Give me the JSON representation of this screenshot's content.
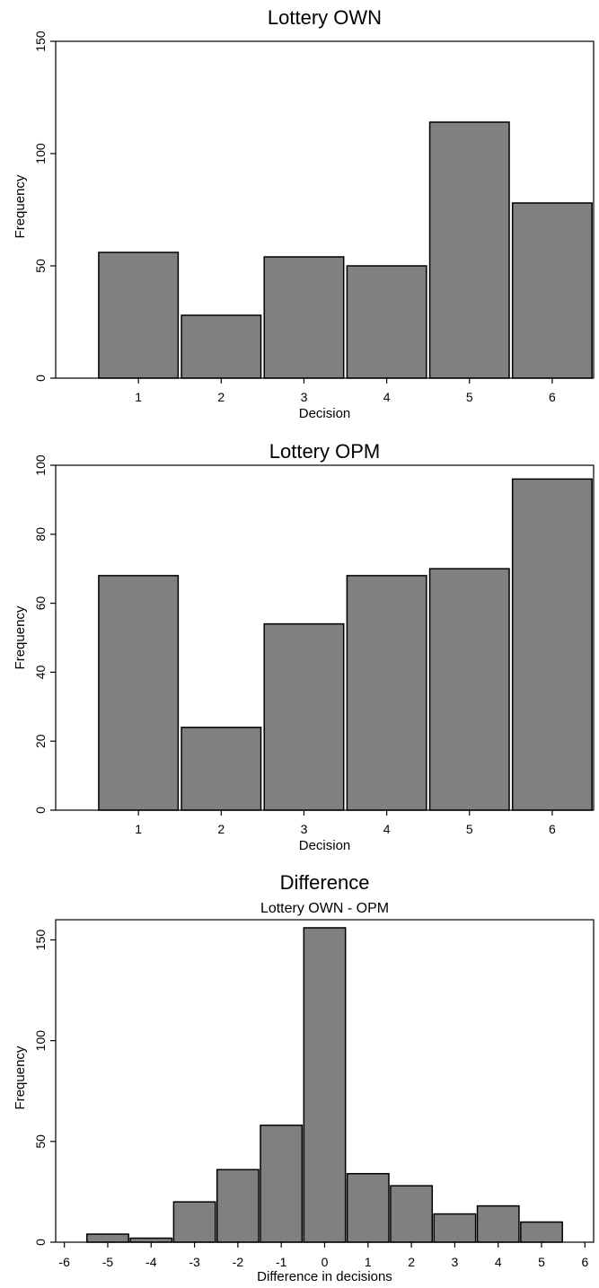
{
  "chart_data": [
    {
      "type": "bar",
      "title": "Lottery OWN",
      "subtitle": "",
      "xlabel": "Decision",
      "ylabel": "Frequency",
      "categories": [
        1,
        2,
        3,
        4,
        5,
        6
      ],
      "values": [
        56,
        28,
        54,
        50,
        114,
        78
      ],
      "xlim": [
        0,
        6.5
      ],
      "ylim": [
        0,
        150
      ],
      "yticks": [
        0,
        50,
        100,
        150
      ],
      "xticks": [
        1,
        2,
        3,
        4,
        5,
        6
      ],
      "bar_width": 0.96,
      "grid": false,
      "bar_color": "#808080"
    },
    {
      "type": "bar",
      "title": "Lottery OPM",
      "subtitle": "",
      "xlabel": "Decision",
      "ylabel": "Frequency",
      "categories": [
        1,
        2,
        3,
        4,
        5,
        6
      ],
      "values": [
        68,
        24,
        54,
        68,
        70,
        96
      ],
      "xlim": [
        0,
        6.5
      ],
      "ylim": [
        0,
        100
      ],
      "yticks": [
        0,
        20,
        40,
        60,
        80,
        100
      ],
      "xticks": [
        1,
        2,
        3,
        4,
        5,
        6
      ],
      "bar_width": 0.96,
      "grid": false,
      "bar_color": "#808080"
    },
    {
      "type": "bar",
      "title": "Difference",
      "subtitle": "Lottery OWN - OPM",
      "xlabel": "Difference in decisions",
      "ylabel": "Frequency",
      "categories": [
        -5,
        -4,
        -3,
        -2,
        -1,
        0,
        1,
        2,
        3,
        4,
        5
      ],
      "values": [
        4,
        2,
        20,
        36,
        58,
        156,
        34,
        28,
        14,
        18,
        10
      ],
      "xlim": [
        -6.2,
        6.2
      ],
      "ylim": [
        0,
        160
      ],
      "yticks": [
        0,
        50,
        100,
        150
      ],
      "xticks": [
        -6,
        -5,
        -4,
        -3,
        -2,
        -1,
        0,
        1,
        2,
        3,
        4,
        5,
        6
      ],
      "bar_width": 0.96,
      "grid": false,
      "bar_color": "#808080"
    }
  ]
}
